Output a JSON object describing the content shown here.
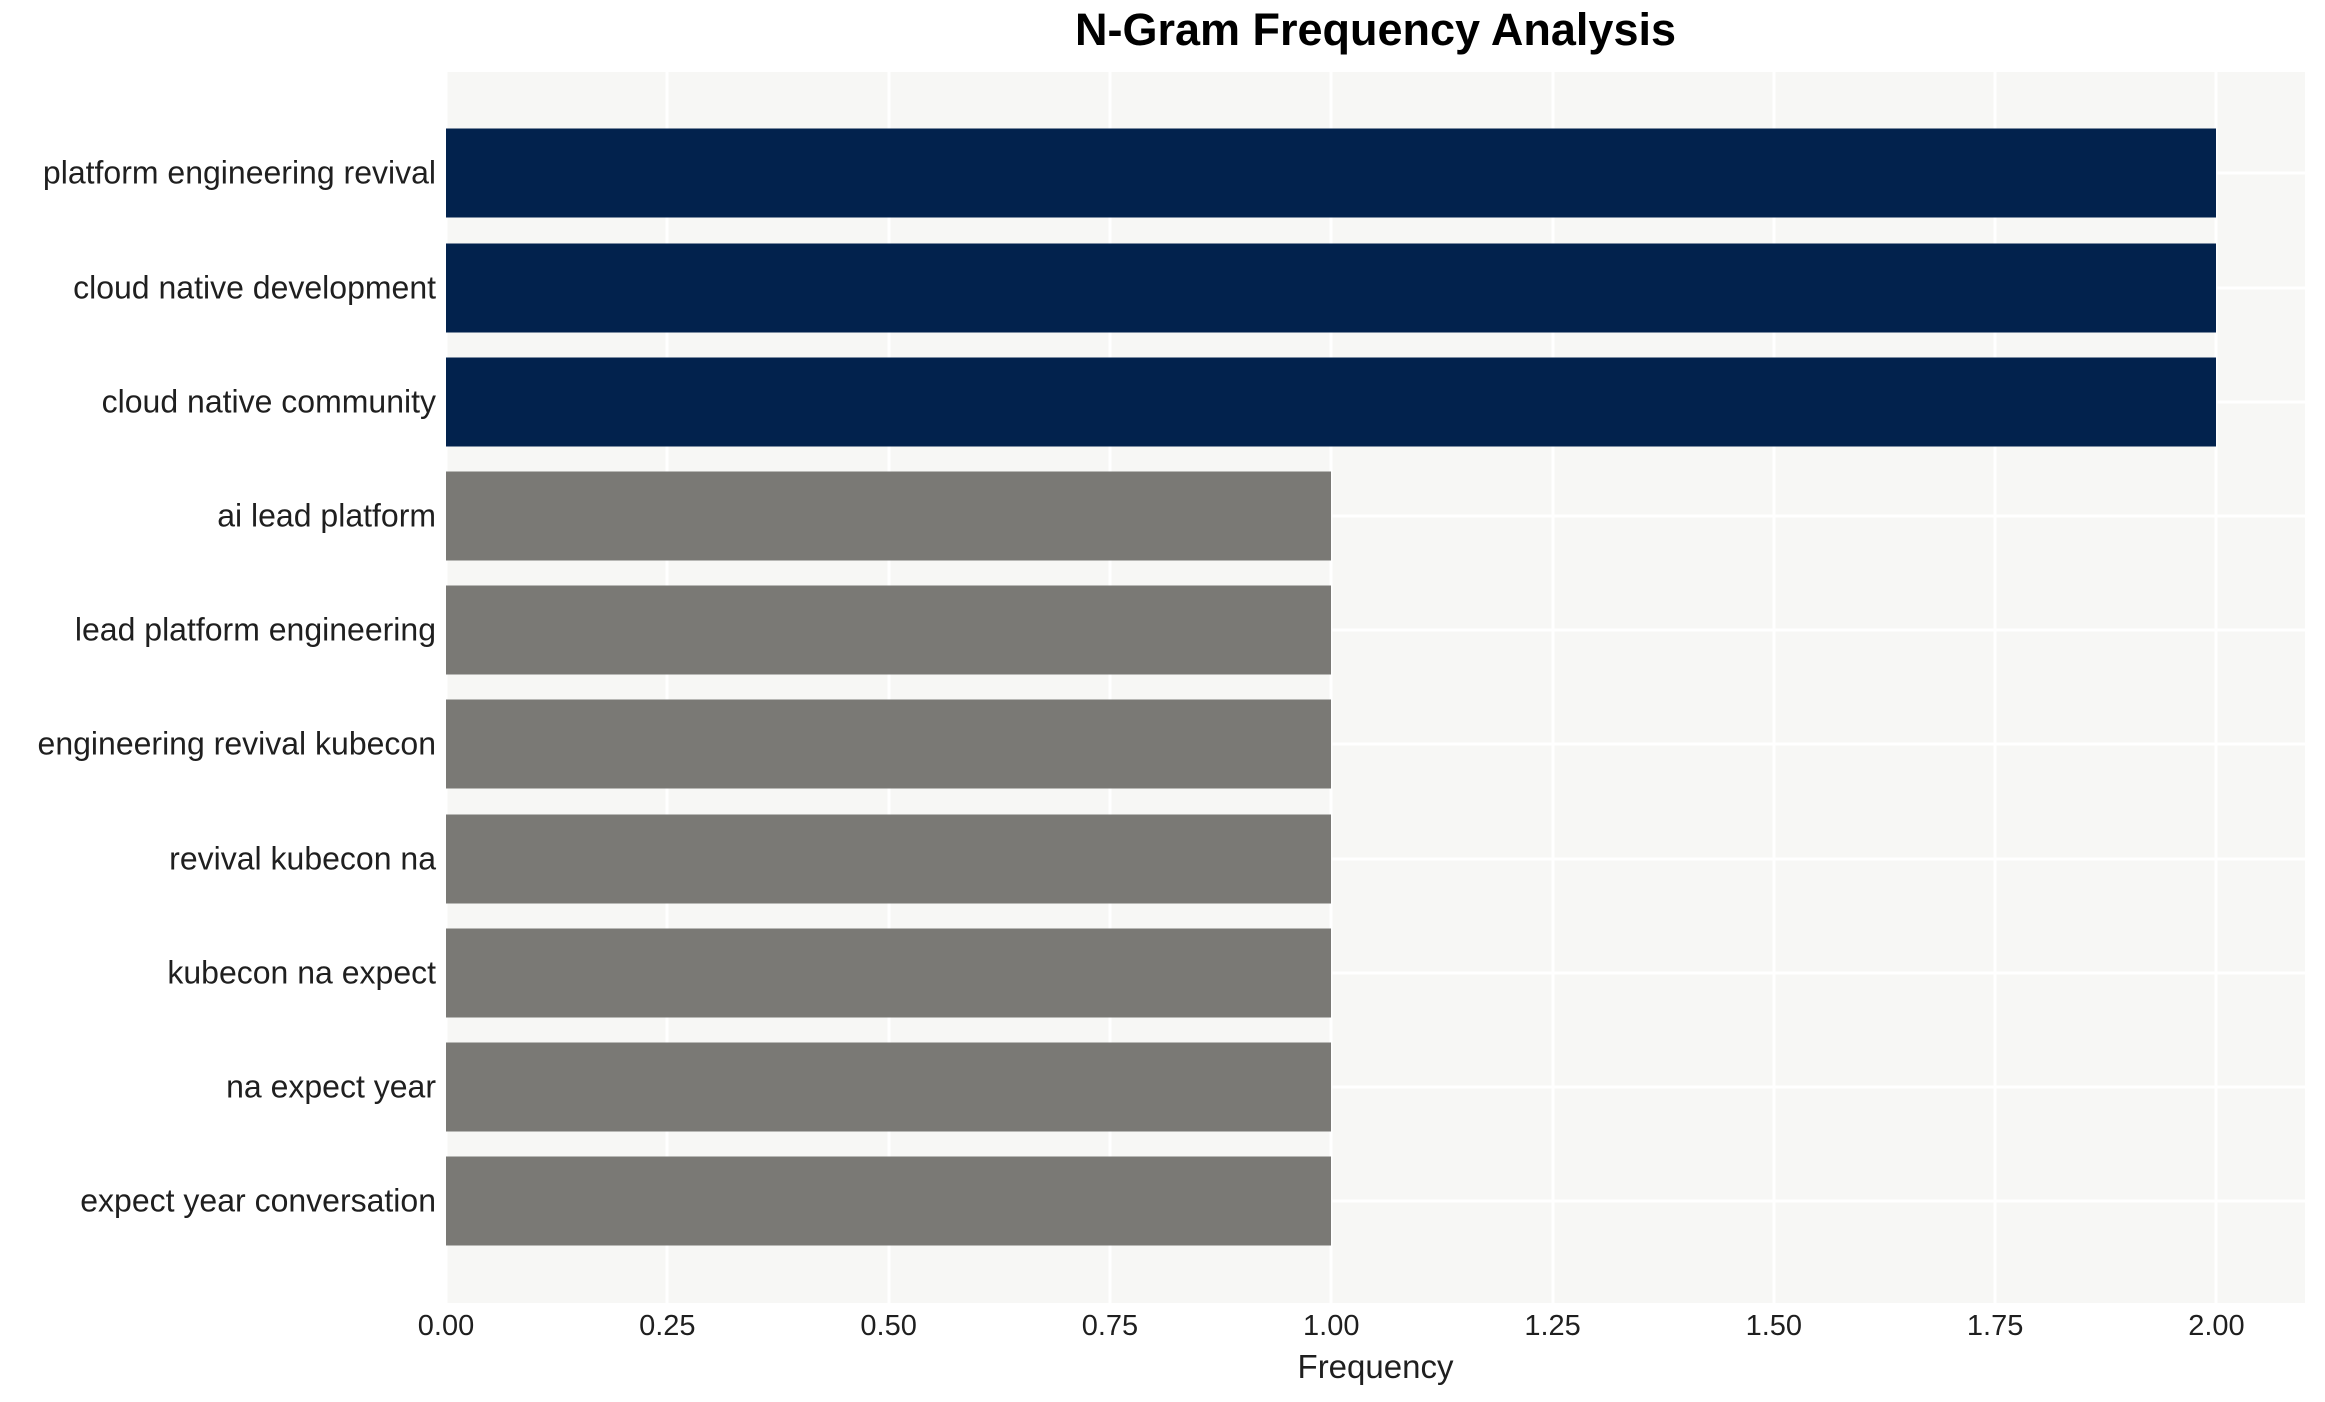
{
  "chart_data": {
    "type": "bar",
    "orientation": "horizontal",
    "title": "N-Gram Frequency Analysis",
    "xlabel": "Frequency",
    "ylabel": "",
    "categories": [
      "platform engineering revival",
      "cloud native development",
      "cloud native community",
      "ai lead platform",
      "lead platform engineering",
      "engineering revival kubecon",
      "revival kubecon na",
      "kubecon na expect",
      "na expect year",
      "expect year conversation"
    ],
    "values": [
      2,
      2,
      2,
      1,
      1,
      1,
      1,
      1,
      1,
      1
    ],
    "highlight_count": 3,
    "xlim": [
      0,
      2.1
    ],
    "xtick_values": [
      0,
      0.25,
      0.5,
      0.75,
      1.0,
      1.25,
      1.5,
      1.75,
      2.0
    ],
    "xtick_labels": [
      "0.00",
      "0.25",
      "0.50",
      "0.75",
      "1.00",
      "1.25",
      "1.50",
      "1.75",
      "2.00"
    ],
    "grid": true,
    "legend": false,
    "colors": {
      "bar_highlight": "#02224d",
      "bar_default": "#7a7975",
      "plot_background": "#f7f7f5",
      "gridline": "#ffffff",
      "tick_text": "#1f1f1f",
      "title_text": "#000000"
    }
  }
}
